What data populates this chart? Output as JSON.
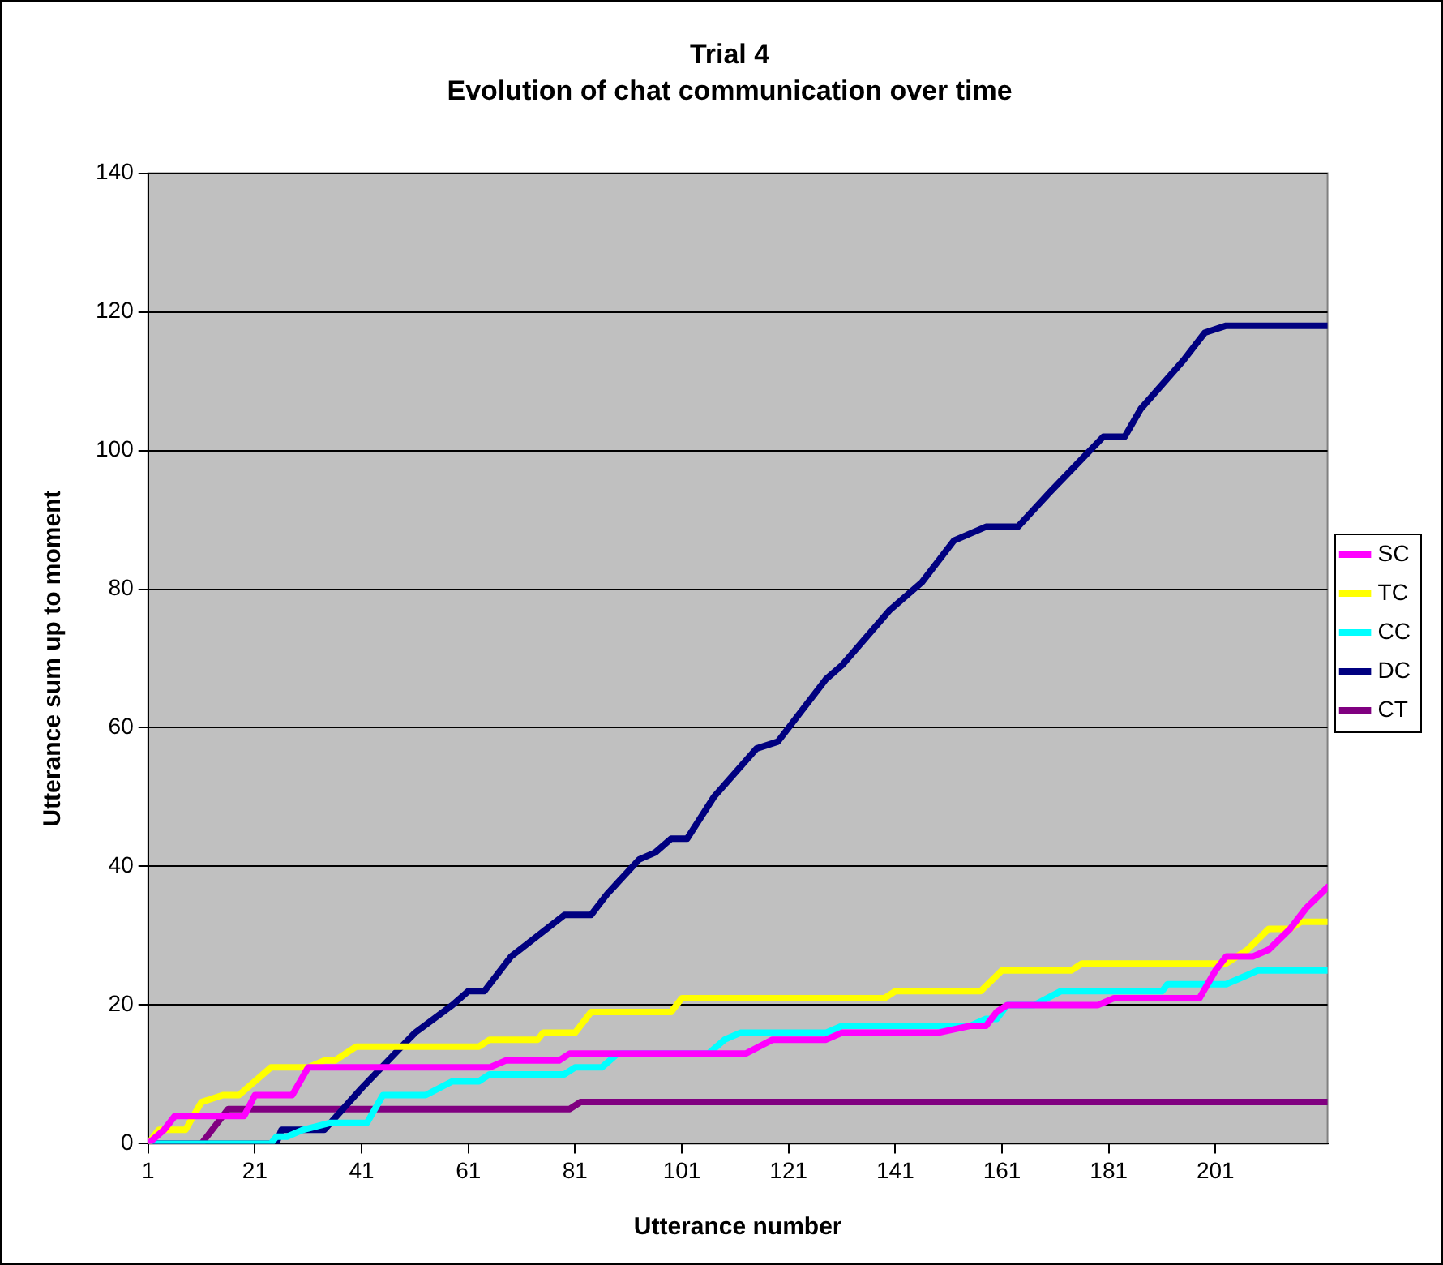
{
  "chart_data": {
    "type": "line",
    "title": "Trial 4",
    "subtitle": "Evolution of chat communication over time",
    "xlabel": "Utterance number",
    "ylabel": "Utterance sum up to moment",
    "xlim": [
      1,
      222
    ],
    "xticks": [
      1,
      21,
      41,
      61,
      81,
      101,
      121,
      141,
      161,
      181,
      201
    ],
    "ylim": [
      0,
      140
    ],
    "yticks": [
      0,
      20,
      40,
      60,
      80,
      100,
      120,
      140
    ],
    "grid": "y",
    "legend": "right",
    "marker": "none",
    "line_style": "solid",
    "series": [
      {
        "name": "SC",
        "color": "#ff00ff",
        "x": [
          1,
          4,
          6,
          19,
          21,
          28,
          31,
          65,
          68,
          78,
          80,
          113,
          118,
          128,
          131,
          149,
          155,
          158,
          160,
          162,
          179,
          182,
          198,
          201,
          203,
          208,
          211,
          215,
          218,
          222
        ],
        "values": [
          0,
          2,
          4,
          4,
          7,
          7,
          11,
          11,
          12,
          12,
          13,
          13,
          15,
          15,
          16,
          16,
          17,
          17,
          19,
          20,
          20,
          21,
          21,
          25,
          27,
          27,
          28,
          31,
          34,
          37
        ]
      },
      {
        "name": "TC",
        "color": "#ffff00",
        "x": [
          1,
          3,
          8,
          11,
          15,
          18,
          21,
          24,
          31,
          34,
          36,
          40,
          63,
          65,
          74,
          75,
          81,
          84,
          99,
          101,
          139,
          141,
          157,
          161,
          174,
          176,
          203,
          205,
          207,
          211,
          215,
          217,
          222
        ],
        "values": [
          0,
          2,
          2,
          6,
          7,
          7,
          9,
          11,
          11,
          12,
          12,
          14,
          14,
          15,
          15,
          16,
          16,
          19,
          19,
          21,
          21,
          22,
          22,
          25,
          25,
          26,
          26,
          27,
          28,
          31,
          31,
          32,
          32
        ]
      },
      {
        "name": "CC",
        "color": "#00ffff",
        "x": [
          1,
          24,
          25,
          27,
          30,
          35,
          42,
          45,
          53,
          58,
          63,
          65,
          79,
          81,
          86,
          89,
          106,
          109,
          112,
          128,
          131,
          155,
          158,
          160,
          162,
          167,
          172,
          191,
          192,
          203,
          206,
          209,
          222
        ],
        "values": [
          0,
          0,
          1,
          1,
          2,
          3,
          3,
          7,
          7,
          9,
          9,
          10,
          10,
          11,
          11,
          13,
          13,
          15,
          16,
          16,
          17,
          17,
          18,
          18,
          20,
          20,
          22,
          22,
          23,
          23,
          24,
          25,
          25
        ]
      },
      {
        "name": "DC",
        "color": "#000080",
        "x": [
          1,
          25,
          26,
          34,
          41,
          51,
          58,
          61,
          64,
          69,
          79,
          84,
          87,
          93,
          96,
          99,
          102,
          107,
          115,
          119,
          128,
          131,
          140,
          146,
          152,
          158,
          164,
          170,
          175,
          180,
          184,
          187,
          195,
          199,
          203,
          222
        ],
        "values": [
          0,
          0,
          2,
          2,
          8,
          16,
          20,
          22,
          22,
          27,
          33,
          33,
          36,
          41,
          42,
          44,
          44,
          50,
          57,
          58,
          67,
          69,
          77,
          81,
          87,
          89,
          89,
          94,
          98,
          102,
          102,
          106,
          113,
          117,
          118,
          118
        ]
      },
      {
        "name": "CT",
        "color": "#800080",
        "x": [
          1,
          11,
          16,
          80,
          82,
          222
        ],
        "values": [
          0,
          0,
          5,
          5,
          6,
          6
        ]
      }
    ]
  }
}
